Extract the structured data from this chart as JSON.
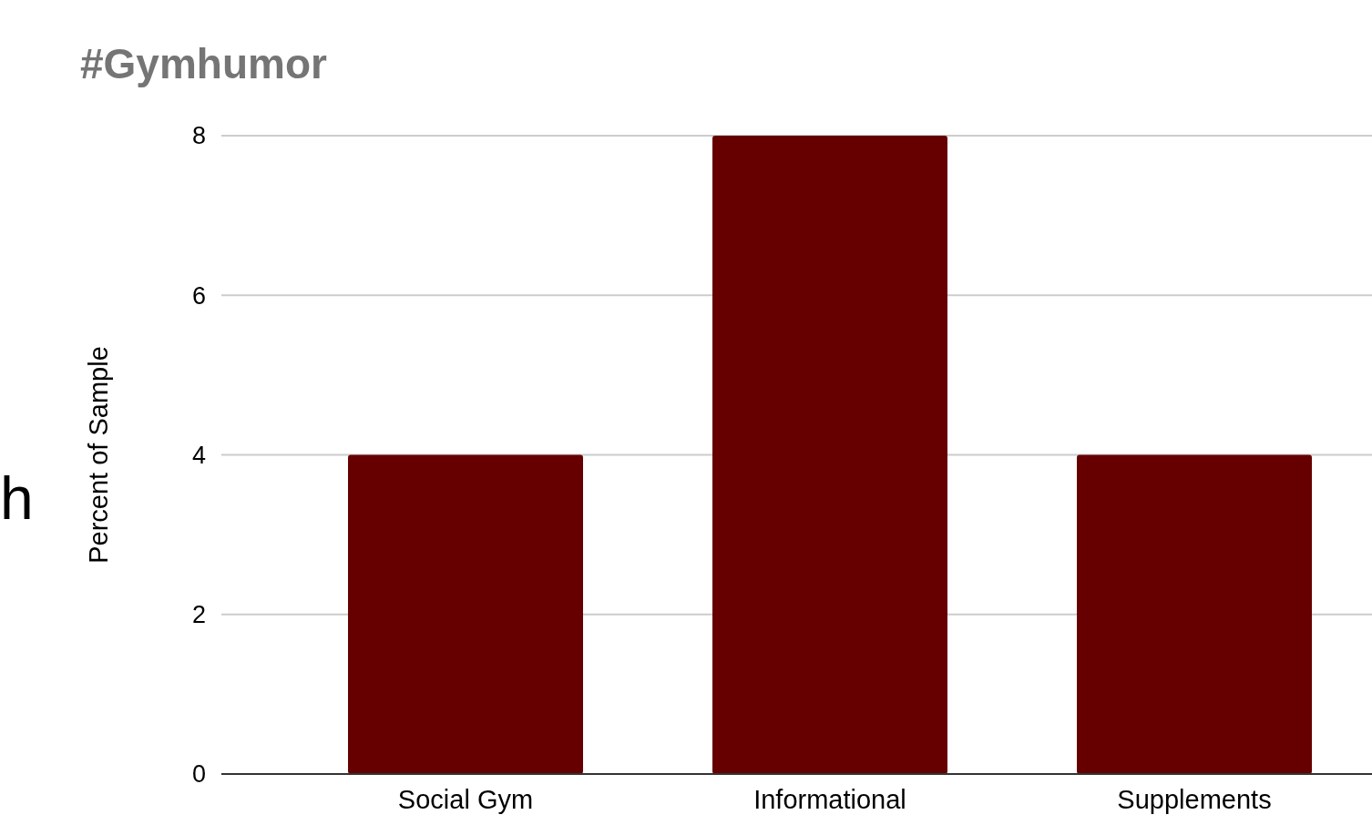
{
  "chart_data": {
    "type": "bar",
    "title": "#Gymhumor",
    "ylabel": "Percent of Sample",
    "categories": [
      "Social Gym",
      "Informational",
      "Supplements"
    ],
    "values": [
      4,
      8,
      4
    ],
    "color": "#660000",
    "ylim": [
      0,
      8
    ],
    "yticks": [
      0,
      2,
      4,
      6,
      8
    ],
    "grid": "y",
    "annotations": [
      "h"
    ]
  }
}
